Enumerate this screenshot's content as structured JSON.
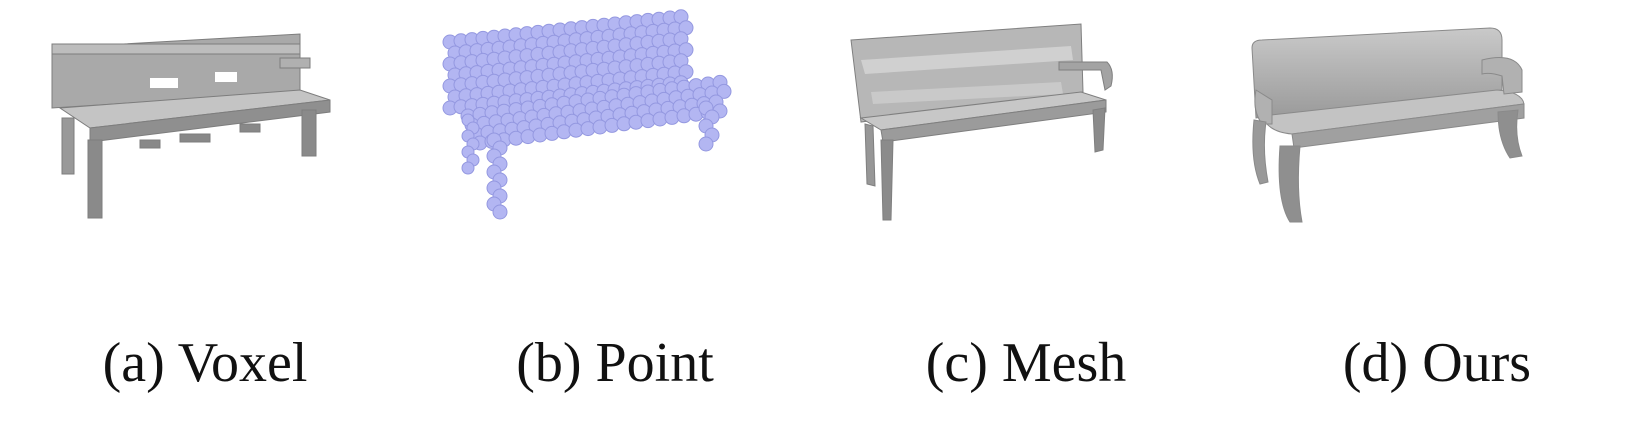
{
  "figure": {
    "panels": [
      {
        "caption": "(a) Voxel",
        "shape_color": "#9a9a9a"
      },
      {
        "caption": "(b) Point",
        "shape_color": "#b3b6f2"
      },
      {
        "caption": "(c) Mesh",
        "shape_color": "#9e9e9e"
      },
      {
        "caption": "(d) Ours",
        "shape_color": "#a6a6a6"
      }
    ]
  }
}
